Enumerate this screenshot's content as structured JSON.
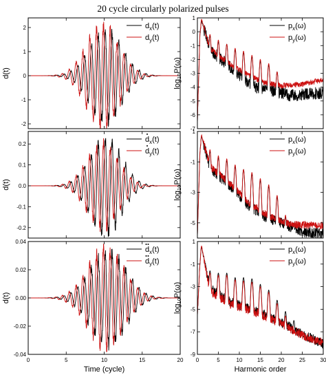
{
  "figure": {
    "title": "20 cycle circularly polarized pulses",
    "colors": {
      "black_series": "#000000",
      "red_series": "#cc1111"
    }
  },
  "chart_data": [
    {
      "type": "line",
      "panel": "left-top",
      "xlim": [
        0,
        20
      ],
      "ylim": [
        -2.2,
        2.4
      ],
      "xticks": [
        0,
        5,
        10,
        15,
        20
      ],
      "yticks": [
        -2,
        -1,
        0,
        1,
        2
      ],
      "ytick_labels": [
        "-2",
        "-1",
        "0",
        "1",
        "2"
      ],
      "xlabel": "",
      "ylabel": "d(t)",
      "legend_position": "top-right",
      "series": [
        {
          "name": "dx(t)",
          "label_base": "d",
          "label_sub": "x",
          "label_tail": "(t)",
          "accent": "",
          "color": "#000000",
          "envelope_center": 10.2,
          "envelope_width": 3.0,
          "amplitude": 1.9,
          "cycle_period": 0.9,
          "phase": 0.0
        },
        {
          "name": "dy(t)",
          "label_base": "d",
          "label_sub": "y",
          "label_tail": "(t)",
          "accent": "",
          "color": "#cc1111",
          "envelope_center": 9.8,
          "envelope_width": 3.0,
          "amplitude": 2.1,
          "cycle_period": 0.9,
          "phase": 1.57
        }
      ]
    },
    {
      "type": "line",
      "panel": "left-mid",
      "xlim": [
        0,
        20
      ],
      "ylim": [
        -0.25,
        0.26
      ],
      "xticks": [
        0,
        5,
        10,
        15,
        20
      ],
      "yticks": [
        -0.2,
        -0.1,
        0,
        0.1,
        0.2
      ],
      "ytick_labels": [
        "-0.2",
        "-0.1",
        "0.0",
        "0.1",
        "0.2"
      ],
      "xlabel": "",
      "ylabel": "d(t)",
      "legend_position": "top-right",
      "series": [
        {
          "name": "ḋx(t)",
          "label_base": "d",
          "label_sub": "x",
          "label_tail": "(t)",
          "accent": "dot",
          "color": "#000000",
          "envelope_center": 10.2,
          "envelope_width": 2.9,
          "amplitude": 0.23,
          "cycle_period": 0.9,
          "phase": 0.0
        },
        {
          "name": "ḋy(t)",
          "label_base": "d",
          "label_sub": "y",
          "label_tail": "(t)",
          "accent": "dot",
          "color": "#cc1111",
          "envelope_center": 9.8,
          "envelope_width": 2.9,
          "amplitude": 0.2,
          "cycle_period": 0.9,
          "phase": 1.57
        }
      ]
    },
    {
      "type": "line",
      "panel": "left-bottom",
      "xlim": [
        0,
        20
      ],
      "ylim": [
        -0.04,
        0.04
      ],
      "xticks": [
        0,
        5,
        10,
        15,
        20
      ],
      "xtick_labels": [
        "0",
        "5",
        "10",
        "15",
        "20"
      ],
      "yticks": [
        -0.04,
        -0.02,
        0,
        0.02,
        0.04
      ],
      "ytick_labels": [
        "-0.04",
        "-0.02",
        "0.00",
        "0.02",
        "0.04"
      ],
      "xlabel": "Time (cycle)",
      "ylabel": "d(t)",
      "legend_position": "top-right",
      "series": [
        {
          "name": "d̈x(t)",
          "label_base": "d",
          "label_sub": "x",
          "label_tail": "(t)",
          "accent": "ddot",
          "color": "#000000",
          "envelope_center": 10.5,
          "envelope_width": 3.3,
          "amplitude": 0.033,
          "cycle_period": 0.9,
          "phase": 0.0
        },
        {
          "name": "d̈y(t)",
          "label_base": "d",
          "label_sub": "y",
          "label_tail": "(t)",
          "accent": "ddot",
          "color": "#cc1111",
          "envelope_center": 10.2,
          "envelope_width": 3.3,
          "amplitude": 0.035,
          "cycle_period": 0.9,
          "phase": 1.57
        }
      ]
    },
    {
      "type": "line",
      "panel": "right-top",
      "xlim": [
        0,
        30
      ],
      "ylim": [
        -7,
        1
      ],
      "xticks": [
        0,
        5,
        10,
        15,
        20,
        25,
        30
      ],
      "yticks": [
        -7,
        -6,
        -5,
        -4,
        -3,
        -2,
        -1,
        0,
        1
      ],
      "ytick_labels": [
        "-7",
        "-6",
        "-5",
        "-4",
        "-3",
        "-2",
        "-1",
        "0",
        "1"
      ],
      "xlabel": "",
      "ylabel": "log10P(ω)",
      "legend_position": "top-right",
      "series": [
        {
          "name": "px(ω)",
          "label_base": "p",
          "label_sub": "x",
          "label_tail": "(ω)",
          "color": "#000000",
          "base": [
            [
              0,
              -6.5
            ],
            [
              0.6,
              -0.2
            ],
            [
              1,
              0.8
            ],
            [
              3,
              -1.3
            ],
            [
              8,
              -2.6
            ],
            [
              12,
              -3.6
            ],
            [
              15,
              -4.2
            ],
            [
              19,
              -4.3
            ],
            [
              22,
              -4.6
            ],
            [
              30,
              -4.4
            ]
          ],
          "peaks": [
            [
              1,
              0.8
            ],
            [
              3,
              -0.3
            ],
            [
              5,
              -0.7
            ],
            [
              7,
              -0.9
            ],
            [
              9,
              -1.3
            ],
            [
              11,
              -1.5
            ],
            [
              13,
              -1.8
            ],
            [
              15,
              -2.1
            ],
            [
              17,
              -2.4
            ],
            [
              19,
              -2.9
            ]
          ],
          "noise": 0.45
        },
        {
          "name": "py(ω)",
          "label_base": "p",
          "label_sub": "y",
          "label_tail": "(ω)",
          "color": "#cc1111",
          "base": [
            [
              0,
              -6.5
            ],
            [
              0.6,
              -0.2
            ],
            [
              1,
              0.9
            ],
            [
              3,
              -1.2
            ],
            [
              8,
              -2.4
            ],
            [
              12,
              -3.1
            ],
            [
              16,
              -3.7
            ],
            [
              20,
              -3.9
            ],
            [
              25,
              -3.8
            ],
            [
              30,
              -3.45
            ]
          ],
          "peaks": [
            [
              1,
              0.9
            ],
            [
              3,
              -0.2
            ],
            [
              5,
              -0.6
            ],
            [
              7,
              -0.9
            ],
            [
              9,
              -1.2
            ],
            [
              11,
              -1.4
            ],
            [
              13,
              -1.7
            ],
            [
              15,
              -2.0
            ],
            [
              17,
              -2.3
            ],
            [
              19,
              -2.9
            ]
          ],
          "noise": 0.2
        }
      ]
    },
    {
      "type": "line",
      "panel": "right-mid",
      "xlim": [
        0,
        30
      ],
      "ylim": [
        -6,
        1
      ],
      "xticks": [
        0,
        5,
        10,
        15,
        20,
        25,
        30
      ],
      "yticks": [
        -5,
        -3,
        -1,
        1
      ],
      "ytick_labels": [
        "-5",
        "-3",
        "-1",
        "1"
      ],
      "xlabel": "",
      "ylabel": "log10P(ω)",
      "legend_position": "top-right",
      "series": [
        {
          "name": "px(ω)",
          "label_base": "p",
          "label_sub": "x",
          "label_tail": "(ω)",
          "color": "#000000",
          "base": [
            [
              0,
              -5.8
            ],
            [
              0.6,
              -0.4
            ],
            [
              1,
              0.7
            ],
            [
              3,
              -1.4
            ],
            [
              8,
              -2.6
            ],
            [
              12,
              -3.8
            ],
            [
              16,
              -4.6
            ],
            [
              20,
              -5.0
            ],
            [
              25,
              -5.6
            ],
            [
              30,
              -5.7
            ]
          ],
          "peaks": [
            [
              1,
              0.7
            ],
            [
              3,
              -0.3
            ],
            [
              5,
              -0.7
            ],
            [
              7,
              -0.9
            ],
            [
              9,
              -1.3
            ],
            [
              11,
              -1.5
            ],
            [
              13,
              -1.8
            ],
            [
              15,
              -2.2
            ],
            [
              17,
              -2.6
            ],
            [
              19,
              -3.3
            ],
            [
              21,
              -4.6
            ],
            [
              23,
              -5.0
            ]
          ],
          "noise": 0.35
        },
        {
          "name": "py(ω)",
          "label_base": "p",
          "label_sub": "y",
          "label_tail": "(ω)",
          "color": "#cc1111",
          "base": [
            [
              0,
              -5.8
            ],
            [
              0.6,
              -0.4
            ],
            [
              1,
              0.75
            ],
            [
              3,
              -1.3
            ],
            [
              8,
              -2.5
            ],
            [
              12,
              -3.6
            ],
            [
              16,
              -4.4
            ],
            [
              20,
              -4.9
            ],
            [
              22,
              -5.1
            ],
            [
              30,
              -5.2
            ]
          ],
          "peaks": [
            [
              1,
              0.75
            ],
            [
              3,
              -0.2
            ],
            [
              5,
              -0.6
            ],
            [
              7,
              -0.8
            ],
            [
              9,
              -1.2
            ],
            [
              11,
              -1.5
            ],
            [
              13,
              -1.7
            ],
            [
              15,
              -2.1
            ],
            [
              17,
              -2.5
            ],
            [
              19,
              -3.2
            ],
            [
              21,
              -4.5
            ]
          ],
          "noise": 0.25
        }
      ]
    },
    {
      "type": "line",
      "panel": "right-bottom",
      "xlim": [
        0,
        30
      ],
      "ylim": [
        -9,
        1
      ],
      "xticks": [
        0,
        5,
        10,
        15,
        20,
        25,
        30
      ],
      "xtick_labels": [
        "0",
        "5",
        "10",
        "15",
        "20",
        "25",
        "30"
      ],
      "yticks": [
        -9,
        -7,
        -5,
        -3,
        -1,
        1
      ],
      "ytick_labels": [
        "-9",
        "-7",
        "-5",
        "-3",
        "-1",
        "1"
      ],
      "xlabel": "Harmonic order",
      "ylabel": "log10P(ω)",
      "legend_position": "top-right",
      "series": [
        {
          "name": "px(ω)",
          "label_base": "p",
          "label_sub": "x",
          "label_tail": "(ω)",
          "color": "#000000",
          "base": [
            [
              0,
              -5.5
            ],
            [
              0.6,
              -1.0
            ],
            [
              1,
              0.5
            ],
            [
              3,
              -3.2
            ],
            [
              8,
              -4.4
            ],
            [
              12,
              -4.9
            ],
            [
              16,
              -5.5
            ],
            [
              20,
              -6.2
            ],
            [
              25,
              -7.2
            ],
            [
              30,
              -8.1
            ]
          ],
          "peaks": [
            [
              1,
              0.5
            ],
            [
              3,
              -1.6
            ],
            [
              5,
              -1.8
            ],
            [
              7,
              -1.8
            ],
            [
              9,
              -2.2
            ],
            [
              11,
              -2.2
            ],
            [
              13,
              -2.3
            ],
            [
              15,
              -2.8
            ],
            [
              17,
              -3.3
            ],
            [
              19,
              -4.2
            ],
            [
              21,
              -5.2
            ],
            [
              23,
              -6.0
            ]
          ],
          "noise": 0.45
        },
        {
          "name": "py(ω)",
          "label_base": "p",
          "label_sub": "y",
          "label_tail": "(ω)",
          "color": "#cc1111",
          "base": [
            [
              0,
              -5.5
            ],
            [
              0.6,
              -1.0
            ],
            [
              1,
              0.6
            ],
            [
              3,
              -3.4
            ],
            [
              8,
              -4.6
            ],
            [
              12,
              -5.0
            ],
            [
              16,
              -5.6
            ],
            [
              20,
              -6.3
            ],
            [
              25,
              -7.3
            ],
            [
              30,
              -8.0
            ]
          ],
          "peaks": [
            [
              1,
              0.6
            ],
            [
              3,
              -1.8
            ],
            [
              5,
              -2.0
            ],
            [
              7,
              -2.0
            ],
            [
              9,
              -2.4
            ],
            [
              11,
              -2.5
            ],
            [
              13,
              -2.6
            ],
            [
              15,
              -3.0
            ],
            [
              17,
              -3.5
            ],
            [
              19,
              -4.5
            ],
            [
              21,
              -5.6
            ]
          ],
          "noise": 0.4
        }
      ]
    }
  ]
}
